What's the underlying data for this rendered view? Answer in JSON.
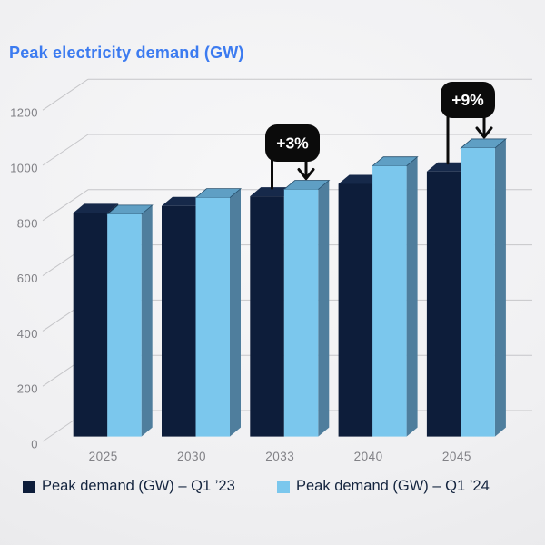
{
  "chart_data": {
    "type": "bar",
    "variant": "3d-column",
    "title": "Peak electricity demand (GW)",
    "categories": [
      "2025",
      "2030",
      "2033",
      "2040",
      "2045"
    ],
    "series": [
      {
        "name": "Peak demand (GW) – Q1 ’23",
        "values": [
          810,
          835,
          870,
          915,
          960
        ],
        "color_front": "#0d1d3a",
        "color_top": "#16294a",
        "color_side": "#0a172e"
      },
      {
        "name": "Peak demand (GW) – Q1 ’24",
        "values": [
          805,
          865,
          895,
          980,
          1045
        ],
        "color_front": "#7bc7ed",
        "color_top": "#5f9fc4",
        "color_side": "#4f7e9d"
      }
    ],
    "yticks": [
      0,
      200,
      400,
      600,
      800,
      1000,
      1200
    ],
    "ylim": [
      0,
      1200
    ],
    "xlabel": "",
    "ylabel": "",
    "grid": true,
    "legend_position": "bottom",
    "annotations": [
      {
        "label": "+3%",
        "category": "2033"
      },
      {
        "label": "+9%",
        "category": "2045"
      }
    ]
  },
  "colors": {
    "title": "#3c7bf0",
    "legend_text": "#15253f",
    "gridline": "#c6c6c9",
    "axis_text": "#818186",
    "callout_bg": "#0b0b0b",
    "callout_text": "#ffffff"
  }
}
